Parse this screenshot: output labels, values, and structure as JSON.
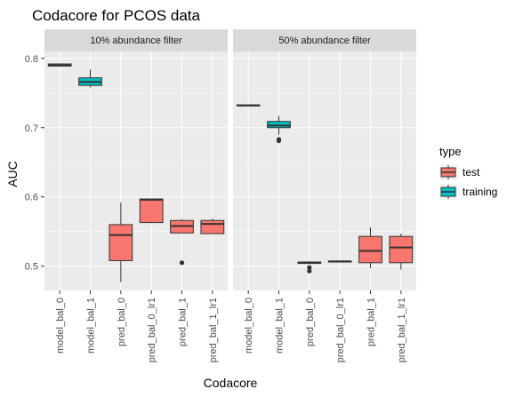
{
  "chart_data": {
    "type": "box",
    "title": "Codacore for PCOS data",
    "xlabel": "Codacore",
    "ylabel": "AUC",
    "ylim": [
      0.465,
      0.81
    ],
    "yticks": [
      0.5,
      0.6,
      0.7,
      0.8
    ],
    "ytick_labels": [
      "0.5",
      "0.6",
      "0.7",
      "0.8"
    ],
    "grid": true,
    "legend": {
      "title": "type",
      "position": "right",
      "entries": [
        {
          "label": "test",
          "color": "#F8766D"
        },
        {
          "label": "training",
          "color": "#00BFC4"
        }
      ]
    },
    "panels": [
      {
        "strip_label": "10% abundance filter",
        "boxes": [
          {
            "category": "model_bal_0",
            "type": "training",
            "min": 0.788,
            "q1": 0.789,
            "median": 0.79,
            "q3": 0.792,
            "max": 0.793,
            "outliers": []
          },
          {
            "category": "model_bal_1",
            "type": "training",
            "min": 0.758,
            "q1": 0.761,
            "median": 0.766,
            "q3": 0.772,
            "max": 0.784,
            "outliers": []
          },
          {
            "category": "pred_bal_0",
            "type": "test",
            "min": 0.477,
            "q1": 0.508,
            "median": 0.545,
            "q3": 0.56,
            "max": 0.592,
            "outliers": []
          },
          {
            "category": "pred_bal_0_lr1",
            "type": "test",
            "min": 0.563,
            "q1": 0.563,
            "median": 0.596,
            "q3": 0.597,
            "max": 0.597,
            "outliers": []
          },
          {
            "category": "pred_bal_1",
            "type": "test",
            "min": 0.548,
            "q1": 0.548,
            "median": 0.558,
            "q3": 0.566,
            "max": 0.568,
            "outliers": [
              0.505
            ]
          },
          {
            "category": "pred_bal_1_lr1",
            "type": "test",
            "min": 0.547,
            "q1": 0.547,
            "median": 0.561,
            "q3": 0.566,
            "max": 0.569,
            "outliers": []
          }
        ]
      },
      {
        "strip_label": "50% abundance filter",
        "boxes": [
          {
            "category": "model_bal_0",
            "type": "training",
            "min": 0.732,
            "q1": 0.732,
            "median": 0.732,
            "q3": 0.733,
            "max": 0.733,
            "outliers": []
          },
          {
            "category": "model_bal_1",
            "type": "training",
            "min": 0.69,
            "q1": 0.7,
            "median": 0.703,
            "q3": 0.709,
            "max": 0.717,
            "outliers": [
              0.683,
              0.681
            ]
          },
          {
            "category": "pred_bal_0",
            "type": "test",
            "min": 0.503,
            "q1": 0.504,
            "median": 0.505,
            "q3": 0.506,
            "max": 0.507,
            "outliers": [
              0.498,
              0.493
            ]
          },
          {
            "category": "pred_bal_0_lr1",
            "type": "test",
            "min": 0.506,
            "q1": 0.506,
            "median": 0.507,
            "q3": 0.507,
            "max": 0.507,
            "outliers": []
          },
          {
            "category": "pred_bal_1",
            "type": "test",
            "min": 0.497,
            "q1": 0.505,
            "median": 0.522,
            "q3": 0.543,
            "max": 0.556,
            "outliers": []
          },
          {
            "category": "pred_bal_1_lr1",
            "type": "test",
            "min": 0.495,
            "q1": 0.505,
            "median": 0.527,
            "q3": 0.543,
            "max": 0.547,
            "outliers": []
          }
        ]
      }
    ]
  }
}
